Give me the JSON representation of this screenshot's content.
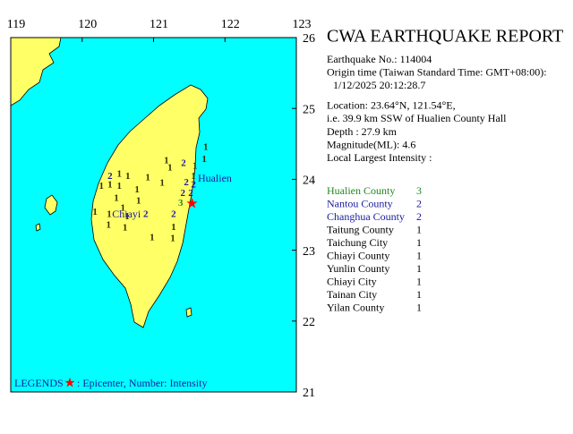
{
  "map": {
    "lonlim": [
      119,
      123
    ],
    "latlim": [
      21,
      26
    ],
    "lonticks": [
      119,
      120,
      121,
      122,
      123
    ],
    "latticks": [
      21,
      22,
      23,
      24,
      25,
      26
    ],
    "sea_color": "#00ffff",
    "land_color": "#ffff66",
    "place_labels": [
      {
        "text": "Hualien",
        "lon": 121.62,
        "lat": 24.0
      },
      {
        "text": "Chiayi",
        "lon": 120.42,
        "lat": 23.5
      }
    ],
    "epicenter": {
      "lon": 121.54,
      "lat": 23.64,
      "color": "#ff0000"
    },
    "levels": [
      {
        "value": 1,
        "color": "#333300"
      },
      {
        "value": 2,
        "color": "#1a1aa0"
      },
      {
        "value": 3,
        "color": "#228822"
      }
    ],
    "stations": [
      {
        "lon": 121.73,
        "lat": 24.45,
        "intensity": 1
      },
      {
        "lon": 121.71,
        "lat": 24.28,
        "intensity": 1
      },
      {
        "lon": 121.18,
        "lat": 24.26,
        "intensity": 1
      },
      {
        "lon": 121.23,
        "lat": 24.16,
        "intensity": 1
      },
      {
        "lon": 121.42,
        "lat": 24.22,
        "intensity": 2
      },
      {
        "lon": 121.58,
        "lat": 24.18,
        "intensity": 1
      },
      {
        "lon": 121.56,
        "lat": 24.04,
        "intensity": 1
      },
      {
        "lon": 121.46,
        "lat": 23.95,
        "intensity": 2
      },
      {
        "lon": 121.56,
        "lat": 23.92,
        "intensity": 2
      },
      {
        "lon": 121.41,
        "lat": 23.8,
        "intensity": 2
      },
      {
        "lon": 121.52,
        "lat": 23.8,
        "intensity": 2
      },
      {
        "lon": 121.38,
        "lat": 23.66,
        "intensity": 3
      },
      {
        "lon": 120.52,
        "lat": 24.07,
        "intensity": 1
      },
      {
        "lon": 120.39,
        "lat": 24.04,
        "intensity": 2
      },
      {
        "lon": 120.64,
        "lat": 24.04,
        "intensity": 1
      },
      {
        "lon": 120.27,
        "lat": 23.9,
        "intensity": 1
      },
      {
        "lon": 120.39,
        "lat": 23.92,
        "intensity": 1
      },
      {
        "lon": 120.52,
        "lat": 23.9,
        "intensity": 1
      },
      {
        "lon": 120.92,
        "lat": 24.02,
        "intensity": 1
      },
      {
        "lon": 121.12,
        "lat": 23.94,
        "intensity": 1
      },
      {
        "lon": 120.77,
        "lat": 23.85,
        "intensity": 1
      },
      {
        "lon": 120.79,
        "lat": 23.69,
        "intensity": 1
      },
      {
        "lon": 120.48,
        "lat": 23.73,
        "intensity": 1
      },
      {
        "lon": 120.57,
        "lat": 23.59,
        "intensity": 1
      },
      {
        "lon": 120.18,
        "lat": 23.53,
        "intensity": 1
      },
      {
        "lon": 120.38,
        "lat": 23.5,
        "intensity": 1
      },
      {
        "lon": 120.89,
        "lat": 23.5,
        "intensity": 2
      },
      {
        "lon": 121.28,
        "lat": 23.5,
        "intensity": 2
      },
      {
        "lon": 120.63,
        "lat": 23.47,
        "intensity": 1
      },
      {
        "lon": 120.37,
        "lat": 23.35,
        "intensity": 1
      },
      {
        "lon": 120.6,
        "lat": 23.31,
        "intensity": 1
      },
      {
        "lon": 121.28,
        "lat": 23.32,
        "intensity": 1
      },
      {
        "lon": 120.98,
        "lat": 23.17,
        "intensity": 1
      },
      {
        "lon": 121.27,
        "lat": 23.16,
        "intensity": 1
      }
    ],
    "legend": {
      "label": "LEGENDS",
      "text": ": Epicenter, Number: Intensity"
    }
  },
  "report": {
    "title": "CWA EARTHQUAKE REPORT",
    "lines": [
      "Earthquake No.: 114004",
      "Origin time (Taiwan Standard Time: GMT+08:00):",
      "1/12/2025 20:12:28.7",
      "Location: 23.64°N, 121.54°E,",
      "i.e. 39.9 km SSW of Hualien County Hall",
      "Depth : 27.9 km",
      "Magnitude(ML): 4.6",
      "Local Largest Intensity :"
    ],
    "intensities": [
      {
        "name": "Hualien County",
        "value": 3,
        "color": "#228822"
      },
      {
        "name": "Nantou County",
        "value": 2,
        "color": "#1a1aa0"
      },
      {
        "name": "Changhua County",
        "value": 2,
        "color": "#1a1aa0"
      },
      {
        "name": "Taitung County",
        "value": 1,
        "color": "#000000"
      },
      {
        "name": "Taichung City",
        "value": 1,
        "color": "#000000"
      },
      {
        "name": "Chiayi County",
        "value": 1,
        "color": "#000000"
      },
      {
        "name": "Yunlin County",
        "value": 1,
        "color": "#000000"
      },
      {
        "name": "Chiayi City",
        "value": 1,
        "color": "#000000"
      },
      {
        "name": "Tainan City",
        "value": 1,
        "color": "#000000"
      },
      {
        "name": "Yilan County",
        "value": 1,
        "color": "#000000"
      }
    ]
  }
}
